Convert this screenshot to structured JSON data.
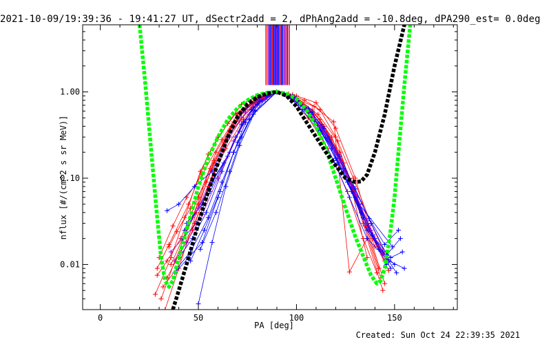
{
  "chart_data": {
    "type": "line",
    "title": "2021-10-09/19:39:36 - 19:41:27 UT, dSectr2add = 2, dPhAng2add = -10.8deg, dPA290_est=  0.0deg",
    "xlabel": "PA [deg]",
    "ylabel": "nflux [#/(cm^2 s sr MeV)]",
    "xlim": [
      -9,
      182
    ],
    "ylim": [
      0.003,
      6
    ],
    "yscale": "log",
    "xticks": [
      0,
      50,
      100,
      150
    ],
    "xtick_labels": [
      "0",
      "50",
      "100",
      "150"
    ],
    "yticks": [
      0.01,
      0.1,
      1.0
    ],
    "ytick_labels": [
      "0.01",
      "0.10",
      "1.00"
    ],
    "grid": false,
    "colors": {
      "red_series": "#ff0000",
      "blue_series": "#0000ff",
      "purple_series": "#9900cc",
      "green_fit": "#00ff00",
      "black_fit": "#000000"
    },
    "series": [
      {
        "color": "green_fit",
        "style": "thick-dashed",
        "x": [
          20,
          23,
          26,
          29,
          31,
          33,
          35,
          37,
          40,
          45,
          50,
          55,
          60,
          65,
          70,
          75,
          80,
          85,
          90,
          95,
          100,
          105,
          110,
          115,
          120,
          125,
          130,
          135,
          138,
          141,
          143,
          145,
          148,
          150,
          152,
          155,
          158
        ],
        "y": [
          6,
          1.2,
          0.2,
          0.035,
          0.012,
          0.0065,
          0.0055,
          0.0065,
          0.012,
          0.03,
          0.08,
          0.17,
          0.3,
          0.48,
          0.65,
          0.8,
          0.92,
          0.98,
          1.0,
          0.95,
          0.83,
          0.62,
          0.4,
          0.22,
          0.1,
          0.045,
          0.021,
          0.011,
          0.0075,
          0.006,
          0.0065,
          0.009,
          0.025,
          0.06,
          0.2,
          1.2,
          6
        ]
      },
      {
        "color": "black_fit",
        "style": "thick-dashed",
        "x": [
          37,
          40,
          45,
          50,
          55,
          60,
          65,
          70,
          75,
          80,
          85,
          90,
          95,
          100,
          105,
          110,
          115,
          120,
          125,
          130,
          133,
          136,
          140,
          145,
          150,
          155
        ],
        "y": [
          0.003,
          0.005,
          0.012,
          0.03,
          0.07,
          0.15,
          0.3,
          0.52,
          0.72,
          0.87,
          0.96,
          1.0,
          0.9,
          0.68,
          0.45,
          0.3,
          0.2,
          0.14,
          0.1,
          0.09,
          0.092,
          0.11,
          0.2,
          0.55,
          2.0,
          6
        ]
      },
      {
        "color": "red_series",
        "x": [
          29,
          35,
          45,
          55,
          65,
          72,
          80,
          90,
          100,
          110,
          120,
          130,
          137,
          145
        ],
        "y": [
          0.009,
          0.017,
          0.05,
          0.19,
          0.43,
          0.72,
          0.9,
          1.0,
          0.9,
          0.75,
          0.38,
          0.1,
          0.028,
          0.011
        ]
      },
      {
        "color": "red_series",
        "x": [
          31,
          38,
          47,
          56,
          66,
          74,
          82,
          90,
          98,
          108,
          118,
          127,
          135,
          142
        ],
        "y": [
          0.004,
          0.011,
          0.035,
          0.13,
          0.36,
          0.62,
          0.84,
          1.0,
          0.93,
          0.62,
          0.3,
          0.09,
          0.028,
          0.009
        ]
      },
      {
        "color": "red_series",
        "x": [
          33,
          40,
          49,
          58,
          67,
          75,
          83,
          90,
          97,
          106,
          116,
          126,
          134,
          141
        ],
        "y": [
          0.003,
          0.009,
          0.04,
          0.16,
          0.4,
          0.68,
          0.88,
          1.0,
          0.85,
          0.5,
          0.22,
          0.07,
          0.02,
          0.008
        ]
      },
      {
        "color": "red_series",
        "x": [
          30,
          37,
          44,
          52,
          62,
          70,
          80,
          90,
          100,
          109,
          119,
          127,
          136,
          144
        ],
        "y": [
          0.012,
          0.028,
          0.06,
          0.11,
          0.28,
          0.55,
          0.86,
          1.0,
          0.82,
          0.68,
          0.45,
          0.0082,
          0.02,
          0.005
        ]
      },
      {
        "color": "red_series",
        "x": [
          34,
          41,
          48,
          57,
          65,
          72,
          81,
          90,
          99,
          107,
          117,
          125,
          133,
          140
        ],
        "y": [
          0.007,
          0.014,
          0.03,
          0.1,
          0.3,
          0.5,
          0.78,
          1.0,
          0.88,
          0.58,
          0.28,
          0.12,
          0.04,
          0.016
        ]
      },
      {
        "color": "red_series",
        "x": [
          35,
          39,
          46,
          54,
          63,
          71,
          79,
          90,
          101,
          111,
          121,
          129,
          138,
          146
        ],
        "y": [
          0.016,
          0.024,
          0.045,
          0.09,
          0.26,
          0.46,
          0.74,
          1.0,
          0.8,
          0.55,
          0.27,
          0.1,
          0.03,
          0.012
        ]
      },
      {
        "color": "red_series",
        "x": [
          28,
          36,
          43,
          51,
          60,
          69,
          78,
          90,
          102,
          112,
          122,
          131,
          139,
          147
        ],
        "y": [
          0.0045,
          0.012,
          0.035,
          0.12,
          0.3,
          0.56,
          0.78,
          1.0,
          0.76,
          0.48,
          0.2,
          0.06,
          0.02,
          0.0085
        ]
      },
      {
        "color": "red_series",
        "x": [
          32,
          39,
          47,
          55,
          64,
          73,
          82,
          90,
          98,
          108,
          114,
          124,
          132,
          145
        ],
        "y": [
          0.0055,
          0.009,
          0.025,
          0.08,
          0.22,
          0.48,
          0.82,
          1.0,
          0.86,
          0.6,
          0.4,
          0.15,
          0.05,
          0.006
        ]
      },
      {
        "color": "red_series",
        "x": [
          36,
          42,
          50,
          58,
          66,
          72,
          84,
          90,
          96,
          104,
          112,
          120,
          128,
          136
        ],
        "y": [
          0.01,
          0.02,
          0.05,
          0.15,
          0.35,
          0.6,
          0.9,
          1.0,
          0.95,
          0.8,
          0.62,
          0.3,
          0.08,
          0.012
        ]
      },
      {
        "color": "red_series",
        "x": [
          29,
          34,
          41,
          50,
          59,
          68,
          77,
          90,
          103,
          113,
          121,
          128,
          134,
          143
        ],
        "y": [
          0.0075,
          0.011,
          0.02,
          0.06,
          0.2,
          0.45,
          0.76,
          1.0,
          0.7,
          0.42,
          0.2,
          0.08,
          0.03,
          0.007
        ]
      },
      {
        "color": "blue_series",
        "x": [
          34,
          40,
          48,
          57,
          65,
          73,
          81,
          90,
          99,
          107,
          115,
          124,
          133,
          142,
          150
        ],
        "y": [
          0.042,
          0.05,
          0.08,
          0.12,
          0.3,
          0.6,
          0.85,
          1.0,
          0.82,
          0.55,
          0.3,
          0.12,
          0.04,
          0.015,
          0.01
        ]
      },
      {
        "color": "blue_series",
        "x": [
          38,
          45,
          52,
          60,
          68,
          76,
          84,
          90,
          96,
          104,
          112,
          120,
          128,
          137,
          146
        ],
        "y": [
          0.008,
          0.012,
          0.018,
          0.06,
          0.2,
          0.48,
          0.82,
          1.0,
          0.9,
          0.66,
          0.4,
          0.2,
          0.08,
          0.025,
          0.01
        ]
      },
      {
        "color": "blue_series",
        "x": [
          40,
          47,
          54,
          62,
          69,
          77,
          85,
          90,
          95,
          103,
          111,
          119,
          127,
          136,
          147
        ],
        "y": [
          0.012,
          0.02,
          0.04,
          0.12,
          0.3,
          0.62,
          0.9,
          1.0,
          0.92,
          0.62,
          0.36,
          0.16,
          0.06,
          0.02,
          0.011
        ]
      },
      {
        "color": "blue_series",
        "x": [
          42,
          49,
          56,
          63,
          71,
          78,
          86,
          90,
          94,
          102,
          110,
          118,
          126,
          134,
          148
        ],
        "y": [
          0.02,
          0.03,
          0.07,
          0.15,
          0.35,
          0.66,
          0.92,
          1.0,
          0.94,
          0.7,
          0.44,
          0.22,
          0.09,
          0.035,
          0.009
        ]
      },
      {
        "color": "blue_series",
        "x": [
          44,
          52,
          58,
          66,
          73,
          80,
          87,
          90,
          93,
          101,
          109,
          116,
          124,
          132,
          149
        ],
        "y": [
          0.03,
          0.05,
          0.1,
          0.2,
          0.45,
          0.72,
          0.94,
          1.0,
          0.96,
          0.74,
          0.48,
          0.28,
          0.13,
          0.05,
          0.016
        ]
      },
      {
        "color": "blue_series",
        "x": [
          51,
          59,
          66,
          72,
          80,
          90,
          97,
          105,
          112,
          120,
          128,
          136,
          144,
          151
        ],
        "y": [
          0.015,
          0.04,
          0.12,
          0.3,
          0.7,
          1.0,
          0.88,
          0.6,
          0.36,
          0.17,
          0.07,
          0.025,
          0.014,
          0.008
        ]
      },
      {
        "color": "blue_series",
        "x": [
          50,
          57,
          64,
          71,
          79,
          90,
          100,
          108,
          116,
          124,
          132,
          140,
          148,
          154
        ],
        "y": [
          0.0035,
          0.018,
          0.08,
          0.24,
          0.6,
          1.0,
          0.84,
          0.58,
          0.3,
          0.13,
          0.05,
          0.02,
          0.012,
          0.014
        ]
      },
      {
        "color": "blue_series",
        "x": [
          39,
          46,
          55,
          62,
          70,
          78,
          90,
          99,
          106,
          114,
          122,
          130,
          138,
          146,
          153
        ],
        "y": [
          0.009,
          0.014,
          0.035,
          0.09,
          0.26,
          0.55,
          1.0,
          0.86,
          0.64,
          0.38,
          0.18,
          0.075,
          0.03,
          0.013,
          0.02
        ]
      },
      {
        "color": "blue_series",
        "x": [
          43,
          50,
          57,
          65,
          72,
          81,
          90,
          98,
          106,
          113,
          121,
          129,
          137,
          145,
          152
        ],
        "y": [
          0.025,
          0.045,
          0.09,
          0.18,
          0.42,
          0.78,
          1.0,
          0.9,
          0.64,
          0.4,
          0.19,
          0.08,
          0.034,
          0.017,
          0.025
        ]
      },
      {
        "color": "blue_series",
        "x": [
          46,
          53,
          61,
          68,
          74,
          82,
          90,
          97,
          105,
          113,
          121,
          130,
          139,
          147,
          155
        ],
        "y": [
          0.011,
          0.025,
          0.07,
          0.2,
          0.44,
          0.8,
          1.0,
          0.86,
          0.6,
          0.34,
          0.15,
          0.06,
          0.022,
          0.011,
          0.009
        ]
      },
      {
        "color": "purple_series",
        "x": [
          36,
          42,
          50,
          58,
          66,
          74,
          82,
          90,
          98,
          106,
          114,
          122,
          130,
          138,
          146
        ],
        "y": [
          0.014,
          0.02,
          0.045,
          0.12,
          0.3,
          0.58,
          0.86,
          1.0,
          0.85,
          0.6,
          0.34,
          0.16,
          0.065,
          0.025,
          0.011
        ]
      },
      {
        "color": "purple_series",
        "x": [
          38,
          44,
          52,
          60,
          68,
          76,
          84,
          90,
          96,
          104,
          112,
          120,
          128,
          136,
          144
        ],
        "y": [
          0.011,
          0.018,
          0.038,
          0.1,
          0.27,
          0.55,
          0.84,
          1.0,
          0.9,
          0.65,
          0.4,
          0.2,
          0.085,
          0.032,
          0.013
        ]
      }
    ],
    "vertical_bars": [
      {
        "x": 84.5,
        "color": "red_series"
      },
      {
        "x": 85.5,
        "color": "purple_series"
      },
      {
        "x": 86.3,
        "color": "blue_series"
      },
      {
        "x": 87,
        "color": "blue_series"
      },
      {
        "x": 87.7,
        "color": "red_series"
      },
      {
        "x": 88.3,
        "color": "blue_series"
      },
      {
        "x": 89,
        "color": "blue_series"
      },
      {
        "x": 89.6,
        "color": "purple_series"
      },
      {
        "x": 90.2,
        "color": "blue_series"
      },
      {
        "x": 90.9,
        "color": "blue_series"
      },
      {
        "x": 91.6,
        "color": "red_series"
      },
      {
        "x": 92.3,
        "color": "blue_series"
      },
      {
        "x": 93,
        "color": "blue_series"
      },
      {
        "x": 93.8,
        "color": "purple_series"
      },
      {
        "x": 94.6,
        "color": "red_series"
      },
      {
        "x": 95.4,
        "color": "blue_series"
      },
      {
        "x": 96.3,
        "color": "red_series"
      }
    ],
    "vertical_bars_y_range": [
      1.2,
      6
    ]
  },
  "footer": "Created: Sun Oct 24 22:39:35 2021"
}
